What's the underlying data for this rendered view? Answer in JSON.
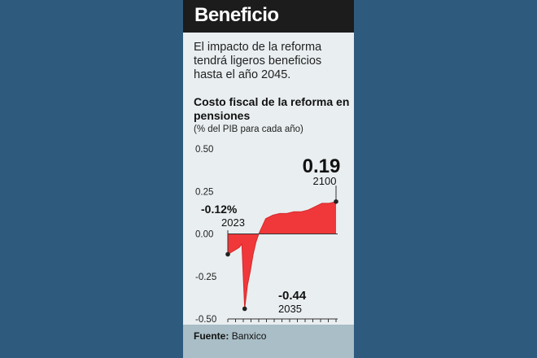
{
  "header": {
    "title": "Beneficio"
  },
  "intro": {
    "text": "El impacto de la reforma tendrá ligeros beneficios hasta el año 2045."
  },
  "footer": {
    "label": "Fuente:",
    "source": "Banxico"
  },
  "colors": {
    "area": "#f0383a",
    "header_bg": "#1c1c1c",
    "card_bg": "#e9eef0",
    "footer_bg": "#a9bec6",
    "page_bg": "#2e5a7d"
  },
  "chart_data": {
    "type": "area",
    "title": "Costo fiscal de la reforma en pensiones",
    "subtitle": "(% del PIB para cada año)",
    "ylim": [
      -0.5,
      0.5
    ],
    "yticks": [
      0.5,
      0.25,
      0.0,
      -0.25,
      -0.5
    ],
    "ytick_labels": [
      "0.50",
      "0.25",
      "0.00",
      "-0.25",
      "-0.50"
    ],
    "x": [
      2023,
      2025,
      2027,
      2029,
      2031,
      2033,
      2035,
      2037,
      2039,
      2041,
      2043,
      2045,
      2050,
      2055,
      2060,
      2065,
      2070,
      2075,
      2080,
      2085,
      2090,
      2095,
      2100
    ],
    "values": [
      -0.12,
      -0.11,
      -0.1,
      -0.09,
      -0.08,
      -0.06,
      -0.44,
      -0.3,
      -0.22,
      -0.12,
      -0.05,
      0.0,
      0.09,
      0.11,
      0.12,
      0.12,
      0.13,
      0.13,
      0.14,
      0.16,
      0.18,
      0.18,
      0.19
    ],
    "annotations": [
      {
        "value_label": "-0.12%",
        "year_label": "2023"
      },
      {
        "value_label": "-0.44",
        "year_label": "2035"
      },
      {
        "value_label": "0.19",
        "year_label": "2100"
      }
    ],
    "grid": false
  }
}
